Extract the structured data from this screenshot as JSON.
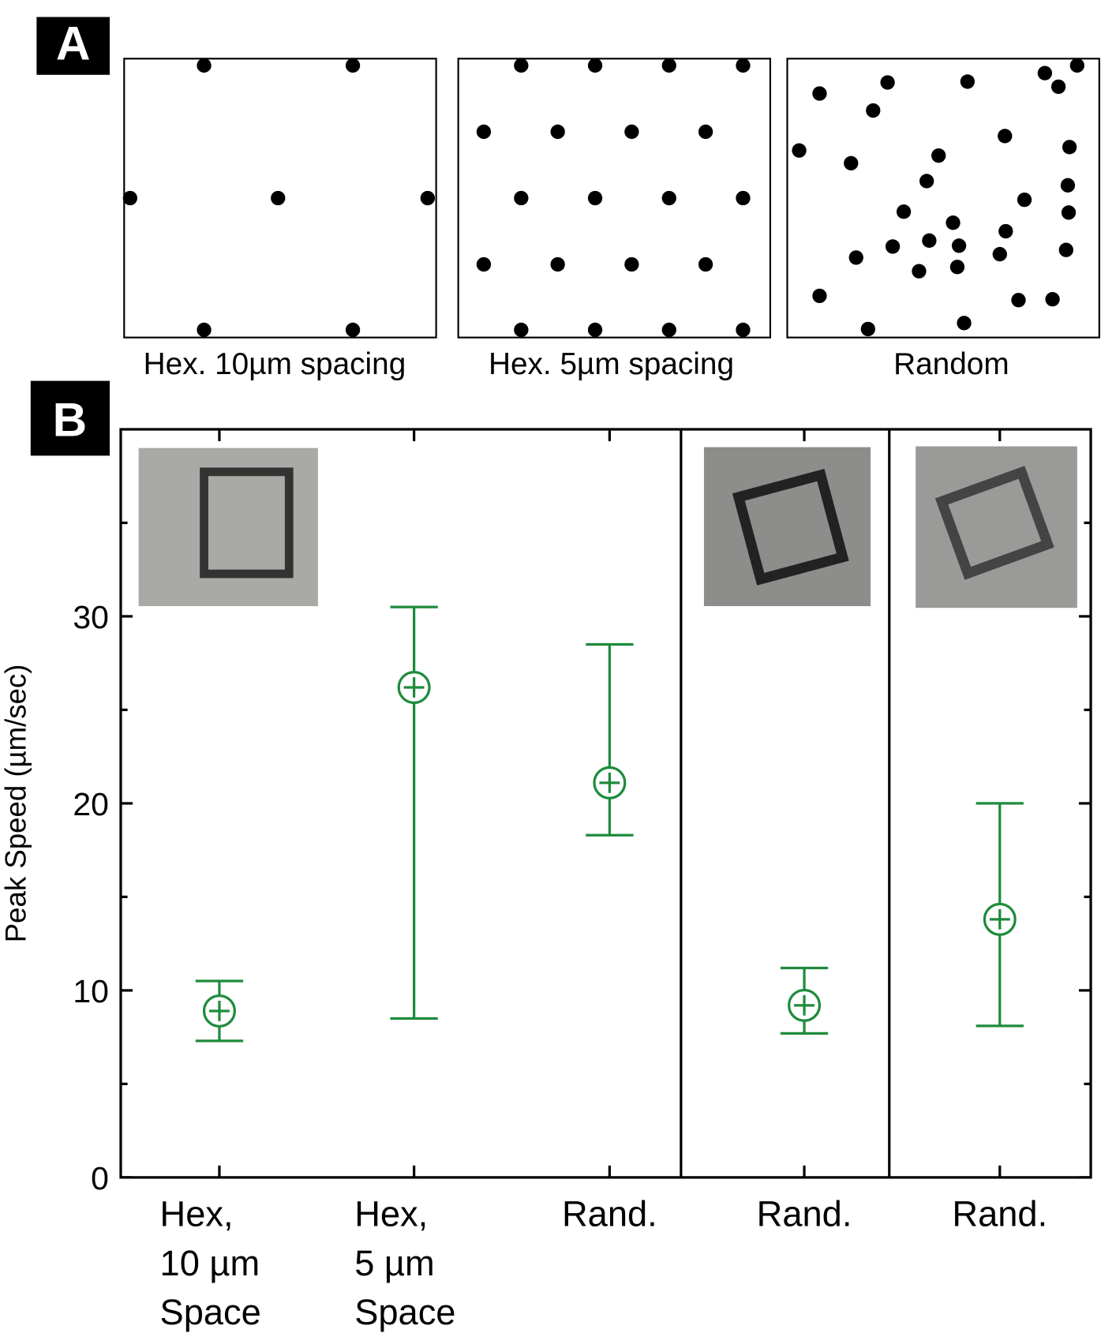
{
  "panel_a": {
    "label": "A",
    "captions": [
      "Hex. 10µm spacing",
      "Hex. 5µm spacing",
      "Random"
    ]
  },
  "chart_data": {
    "type": "errorbar",
    "panel_label": "B",
    "y_label": "Peak Speed (µm/sec)",
    "categories": [
      [
        "Hex,",
        "10 µm",
        "Space"
      ],
      [
        "Hex,",
        "5 µm",
        "Space"
      ],
      [
        "Rand."
      ],
      [
        "Rand."
      ],
      [
        "Rand."
      ]
    ],
    "values": [
      8.9,
      26.2,
      21.1,
      9.2,
      13.8
    ],
    "low": [
      7.3,
      8.5,
      18.3,
      7.7,
      8.1
    ],
    "high": [
      10.5,
      30.5,
      28.5,
      11.2,
      20.0
    ],
    "color": "#1e8b3c",
    "ylim": [
      0,
      40
    ],
    "yticks": [
      0,
      10,
      20,
      30
    ],
    "minor_yticks": [
      5,
      15,
      25,
      35
    ]
  }
}
